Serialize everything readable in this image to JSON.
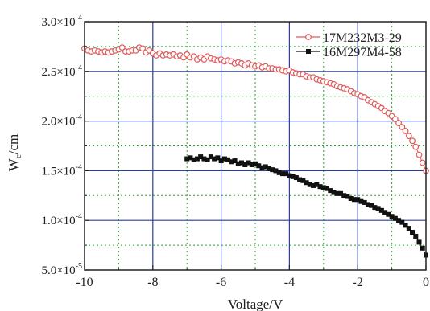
{
  "chart_data": {
    "type": "scatter",
    "xlabel": "Voltage/V",
    "ylabel": "W",
    "ylabel_sub": "c",
    "ylabel_unit": "/cm",
    "xlim": [
      -10,
      0
    ],
    "ylim": [
      5e-05,
      0.0003
    ],
    "x_ticks": [
      -10,
      -8,
      -6,
      -4,
      -2,
      0
    ],
    "x_tick_labels": [
      "-10",
      "-8",
      "-6",
      "-4",
      "-2",
      "0"
    ],
    "y_ticks": [
      {
        "value": 5e-05,
        "mant": "5.0×10",
        "exp": "-5"
      },
      {
        "value": 0.0001,
        "mant": "1.0×10",
        "exp": "-4"
      },
      {
        "value": 0.00015,
        "mant": "1.5×10",
        "exp": "-4"
      },
      {
        "value": 0.0002,
        "mant": "2.0×10",
        "exp": "-4"
      },
      {
        "value": 0.00025,
        "mant": "2.5×10",
        "exp": "-4"
      },
      {
        "value": 0.0003,
        "mant": "3.0×10",
        "exp": "-4"
      }
    ],
    "grid": "major solid blue, minor dotted green",
    "legend_position": "top-right",
    "colors": {
      "series1": "#e05a5a",
      "series2": "#111111",
      "major_grid": "#2a3f9e",
      "minor_grid": "#2aa32a",
      "axes": "#222222"
    },
    "series": [
      {
        "name": "17M232M3-29",
        "marker": "open-circle",
        "x": [
          -10,
          -9.9,
          -9.8,
          -9.7,
          -9.6,
          -9.5,
          -9.4,
          -9.3,
          -9.2,
          -9.1,
          -9,
          -8.9,
          -8.8,
          -8.7,
          -8.6,
          -8.5,
          -8.4,
          -8.3,
          -8.2,
          -8.1,
          -8,
          -7.9,
          -7.8,
          -7.7,
          -7.6,
          -7.5,
          -7.4,
          -7.3,
          -7.2,
          -7.1,
          -7,
          -6.9,
          -6.8,
          -6.7,
          -6.6,
          -6.5,
          -6.4,
          -6.3,
          -6.2,
          -6.1,
          -6,
          -5.9,
          -5.8,
          -5.7,
          -5.6,
          -5.5,
          -5.4,
          -5.3,
          -5.2,
          -5.1,
          -5,
          -4.9,
          -4.8,
          -4.7,
          -4.6,
          -4.5,
          -4.4,
          -4.3,
          -4.2,
          -4.1,
          -4,
          -3.9,
          -3.8,
          -3.7,
          -3.6,
          -3.5,
          -3.4,
          -3.3,
          -3.2,
          -3.1,
          -3,
          -2.9,
          -2.8,
          -2.7,
          -2.6,
          -2.5,
          -2.4,
          -2.3,
          -2.2,
          -2.1,
          -2,
          -1.9,
          -1.8,
          -1.7,
          -1.6,
          -1.5,
          -1.4,
          -1.3,
          -1.2,
          -1.1,
          -1,
          -0.9,
          -0.8,
          -0.7,
          -0.6,
          -0.5,
          -0.4,
          -0.3,
          -0.2,
          -0.1,
          0
        ],
        "y": [
          0.000273,
          0.000271,
          0.00027,
          0.000271,
          0.00027,
          0.000269,
          0.00027,
          0.000269,
          0.00027,
          0.000271,
          0.000272,
          0.000274,
          0.00027,
          0.00027,
          0.000271,
          0.000271,
          0.000274,
          0.000273,
          0.000269,
          0.000271,
          0.000268,
          0.000266,
          0.000268,
          0.000266,
          0.000267,
          0.000266,
          0.000267,
          0.000265,
          0.000266,
          0.000264,
          0.000267,
          0.000264,
          0.000265,
          0.000262,
          0.000264,
          0.000262,
          0.000265,
          0.000263,
          0.000262,
          0.000261,
          0.000262,
          0.00026,
          0.000261,
          0.00026,
          0.000258,
          0.000259,
          0.000258,
          0.000256,
          0.000258,
          0.000256,
          0.000255,
          0.000256,
          0.000254,
          0.000255,
          0.000253,
          0.000253,
          0.000252,
          0.000252,
          0.000251,
          0.00025,
          0.000251,
          0.000249,
          0.000248,
          0.000247,
          0.000247,
          0.000245,
          0.000244,
          0.000244,
          0.000242,
          0.000241,
          0.00024,
          0.000239,
          0.000238,
          0.000237,
          0.000235,
          0.000234,
          0.000233,
          0.000232,
          0.00023,
          0.000228,
          0.000227,
          0.000225,
          0.000224,
          0.000221,
          0.000219,
          0.000217,
          0.000215,
          0.000213,
          0.00021,
          0.000208,
          0.000205,
          0.000202,
          0.000198,
          0.000194,
          0.00019,
          0.000185,
          0.00018,
          0.000174,
          0.000166,
          0.000158,
          0.00015
        ]
      },
      {
        "name": "16M297M4-58",
        "marker": "filled-square",
        "x": [
          -7,
          -6.9,
          -6.8,
          -6.7,
          -6.6,
          -6.5,
          -6.4,
          -6.3,
          -6.2,
          -6.1,
          -6,
          -5.9,
          -5.8,
          -5.7,
          -5.6,
          -5.5,
          -5.4,
          -5.3,
          -5.2,
          -5.1,
          -5,
          -4.9,
          -4.8,
          -4.7,
          -4.6,
          -4.5,
          -4.4,
          -4.3,
          -4.2,
          -4.1,
          -4,
          -3.9,
          -3.8,
          -3.7,
          -3.6,
          -3.5,
          -3.4,
          -3.3,
          -3.2,
          -3.1,
          -3,
          -2.9,
          -2.8,
          -2.7,
          -2.6,
          -2.5,
          -2.4,
          -2.3,
          -2.2,
          -2.1,
          -2,
          -1.9,
          -1.8,
          -1.7,
          -1.6,
          -1.5,
          -1.4,
          -1.3,
          -1.2,
          -1.1,
          -1,
          -0.9,
          -0.8,
          -0.7,
          -0.6,
          -0.5,
          -0.4,
          -0.3,
          -0.2,
          -0.1,
          0
        ],
        "y": [
          0.000162,
          0.000163,
          0.000161,
          0.000162,
          0.000164,
          0.000162,
          0.000161,
          0.000164,
          0.000162,
          0.000163,
          0.00016,
          0.000162,
          0.000161,
          0.000159,
          0.00016,
          0.000157,
          0.000158,
          0.000156,
          0.000158,
          0.000156,
          0.000157,
          0.000155,
          0.000153,
          0.000154,
          0.000152,
          0.000151,
          0.00015,
          0.000148,
          0.000147,
          0.000147,
          0.000145,
          0.000144,
          0.000143,
          0.000141,
          0.00014,
          0.000138,
          0.000136,
          0.000135,
          0.000136,
          0.000134,
          0.000133,
          0.000132,
          0.00013,
          0.000128,
          0.000127,
          0.000127,
          0.000125,
          0.000124,
          0.000122,
          0.000121,
          0.000121,
          0.000119,
          0.000118,
          0.000116,
          0.000115,
          0.000113,
          0.000112,
          0.00011,
          0.000108,
          0.000106,
          0.000104,
          0.000102,
          0.0001,
          9.8e-05,
          9.5e-05,
          9.2e-05,
          8.8e-05,
          8.4e-05,
          7.8e-05,
          7.2e-05,
          6.5e-05
        ]
      }
    ]
  }
}
